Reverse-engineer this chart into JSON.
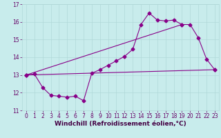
{
  "xlabel": "Windchill (Refroidissement éolien,°C)",
  "background_color": "#c8ecec",
  "line_color": "#880088",
  "grid_color": "#b0d8d8",
  "xlim": [
    -0.5,
    23.5
  ],
  "ylim": [
    11,
    17
  ],
  "yticks": [
    11,
    12,
    13,
    14,
    15,
    16,
    17
  ],
  "xticks": [
    0,
    1,
    2,
    3,
    4,
    5,
    6,
    7,
    8,
    9,
    10,
    11,
    12,
    13,
    14,
    15,
    16,
    17,
    18,
    19,
    20,
    21,
    22,
    23
  ],
  "series1_x": [
    0,
    1,
    2,
    3,
    4,
    5,
    6,
    7,
    8,
    9,
    10,
    11,
    12,
    13,
    14,
    15,
    16,
    17,
    18,
    19,
    20,
    21,
    22,
    23
  ],
  "series1_y": [
    13.0,
    13.05,
    12.3,
    11.85,
    11.8,
    11.75,
    11.8,
    11.55,
    13.1,
    13.3,
    13.55,
    13.8,
    14.05,
    14.45,
    15.85,
    16.5,
    16.1,
    16.05,
    16.1,
    15.85,
    15.85,
    15.1,
    13.9,
    13.3
  ],
  "series2_x": [
    0,
    23
  ],
  "series2_y": [
    13.0,
    13.3
  ],
  "series3_x": [
    0,
    19
  ],
  "series3_y": [
    13.0,
    15.85
  ],
  "marker": "D",
  "marker_size": 2.5,
  "line_width": 0.8,
  "tick_fontsize": 5.5,
  "xlabel_fontsize": 6.5
}
